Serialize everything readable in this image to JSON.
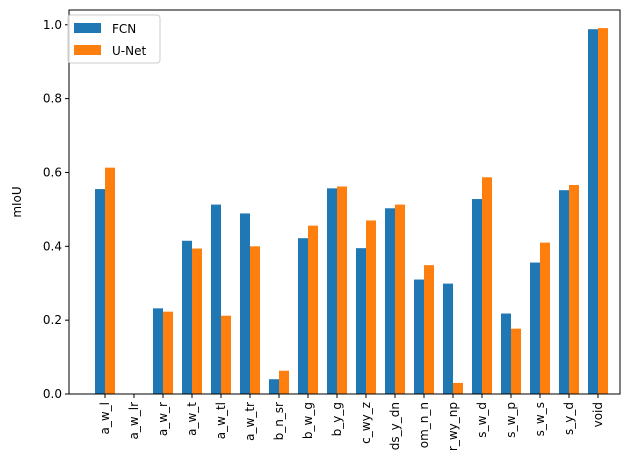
{
  "chart_data": {
    "type": "bar",
    "title": "",
    "xlabel": "",
    "ylabel": "mIoU",
    "ylim": [
      0,
      1.04
    ],
    "yticks": [
      "0.0",
      "0.2",
      "0.4",
      "0.6",
      "0.8",
      "1.0"
    ],
    "grid": false,
    "legend_position": "top-left",
    "categories": [
      "a_w_l",
      "a_w_lr",
      "a_w_r",
      "a_w_t",
      "a_w_tl",
      "a_w_tr",
      "b_n_sr",
      "b_w_g",
      "b_y_g",
      "c_wy_z",
      "ds_y_dn",
      "om_n_n",
      "r_wy_np",
      "s_w_d",
      "s_w_p",
      "s_w_s",
      "s_y_d",
      "void"
    ],
    "series": [
      {
        "name": "FCN",
        "color": "#1f77b4",
        "values": [
          0.555,
          0.0,
          0.232,
          0.415,
          0.513,
          0.489,
          0.04,
          0.422,
          0.557,
          0.395,
          0.503,
          0.31,
          0.299,
          0.528,
          0.218,
          0.356,
          0.552,
          0.988
        ]
      },
      {
        "name": "U-Net",
        "color": "#ff7f0e",
        "values": [
          0.613,
          0.0,
          0.223,
          0.394,
          0.212,
          0.4,
          0.063,
          0.456,
          0.562,
          0.47,
          0.513,
          0.349,
          0.03,
          0.587,
          0.177,
          0.41,
          0.566,
          0.991
        ]
      }
    ]
  }
}
